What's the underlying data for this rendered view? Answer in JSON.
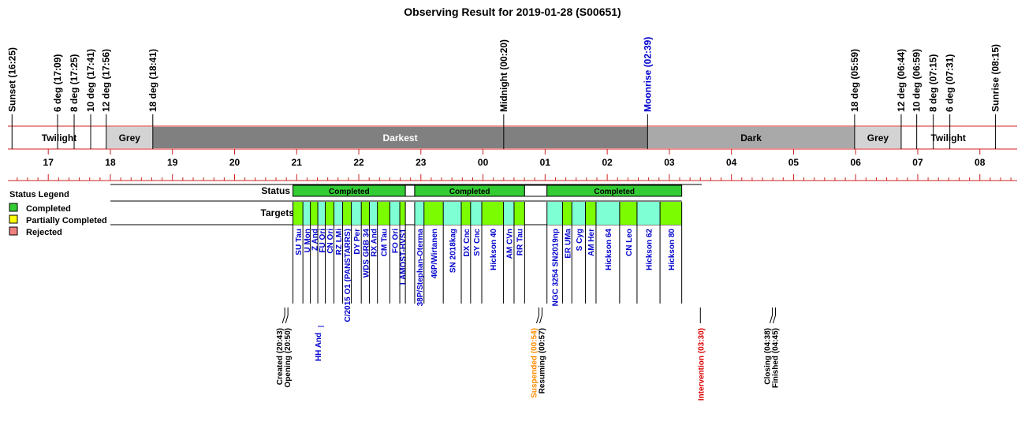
{
  "title": "Observing Result for 2019-01-28 (S00651)",
  "colors": {
    "axis_red": "#d02020",
    "twilight": "#ffffff",
    "grey": "#d3d3d3",
    "darkest": "#808080",
    "dark": "#a9a9a9",
    "completed": "#33cc33",
    "partial": "#ffff00",
    "rejected": "#f08080",
    "target_green": "#7cfc00",
    "target_aqua": "#7fffd4",
    "target_text": "#0000cc",
    "moon_text": "#0000cc",
    "suspend_text": "#ff8c00",
    "intervention_text": "#dd0000"
  },
  "legend": {
    "title": "Status Legend",
    "items": [
      {
        "label": "Completed",
        "color": "#33cc33"
      },
      {
        "label": "Partially Completed",
        "color": "#ffff00"
      },
      {
        "label": "Rejected",
        "color": "#f08080"
      }
    ]
  },
  "chart_data": {
    "type": "timeline",
    "title": "Observing Result for 2019-01-28 (S00651)",
    "x_unit": "hour",
    "xlim": [
      16.35,
      32.6
    ],
    "hour_ticks": [
      {
        "label": "17",
        "t": 17
      },
      {
        "label": "18",
        "t": 18
      },
      {
        "label": "19",
        "t": 19
      },
      {
        "label": "20",
        "t": 20
      },
      {
        "label": "21",
        "t": 21
      },
      {
        "label": "22",
        "t": 22
      },
      {
        "label": "23",
        "t": 23
      },
      {
        "label": "00",
        "t": 24
      },
      {
        "label": "01",
        "t": 25
      },
      {
        "label": "02",
        "t": 26
      },
      {
        "label": "03",
        "t": 27
      },
      {
        "label": "04",
        "t": 28
      },
      {
        "label": "05",
        "t": 29
      },
      {
        "label": "06",
        "t": 30
      },
      {
        "label": "07",
        "t": 31
      },
      {
        "label": "08",
        "t": 32
      }
    ],
    "sky_events": [
      {
        "label": "Sunset (16:25)",
        "t": 16.4167,
        "color": "#000000"
      },
      {
        "label": "6 deg (17:09)",
        "t": 17.15,
        "color": "#000000"
      },
      {
        "label": "8 deg (17:25)",
        "t": 17.4167,
        "color": "#000000"
      },
      {
        "label": "10 deg (17:41)",
        "t": 17.6833,
        "color": "#000000"
      },
      {
        "label": "12 deg (17:56)",
        "t": 17.9333,
        "color": "#000000"
      },
      {
        "label": "18 deg (18:41)",
        "t": 18.6833,
        "color": "#000000"
      },
      {
        "label": "Midnight (00:20)",
        "t": 24.3333,
        "color": "#000000"
      },
      {
        "label": "Moonrise (02:39)",
        "t": 26.65,
        "color": "#0000cc"
      },
      {
        "label": "18 deg (05:59)",
        "t": 29.9833,
        "color": "#000000"
      },
      {
        "label": "12 deg (06:44)",
        "t": 30.7333,
        "color": "#000000"
      },
      {
        "label": "10 deg (06:59)",
        "t": 30.9833,
        "color": "#000000"
      },
      {
        "label": "8 deg (07:15)",
        "t": 31.25,
        "color": "#000000"
      },
      {
        "label": "6 deg (07:31)",
        "t": 31.5167,
        "color": "#000000"
      },
      {
        "label": "Sunrise (08:15)",
        "t": 32.25,
        "color": "#000000"
      }
    ],
    "sky_bands": [
      {
        "label": "Twilight",
        "start": 16.4167,
        "end": 17.9333,
        "fill": "#ffffff",
        "text": "#000000"
      },
      {
        "label": "Grey",
        "start": 17.9333,
        "end": 18.6833,
        "fill": "#d3d3d3",
        "text": "#000000"
      },
      {
        "label": "Darkest",
        "start": 18.6833,
        "end": 26.65,
        "fill": "#808080",
        "text": "#ffffff"
      },
      {
        "label": "Dark",
        "start": 26.65,
        "end": 29.9833,
        "fill": "#a9a9a9",
        "text": "#000000"
      },
      {
        "label": "Grey",
        "start": 29.9833,
        "end": 30.7333,
        "fill": "#d3d3d3",
        "text": "#000000"
      },
      {
        "label": "Twilight",
        "start": 30.7333,
        "end": 32.25,
        "fill": "#ffffff",
        "text": "#000000"
      }
    ],
    "status_label": "Status",
    "targets_label": "Targets",
    "status_blocks": [
      {
        "label": "Completed",
        "start": 20.94,
        "end": 22.75,
        "status": "completed"
      },
      {
        "label": "",
        "start": 22.75,
        "end": 22.9,
        "status": "gap"
      },
      {
        "label": "Completed",
        "start": 22.9,
        "end": 24.67,
        "status": "completed"
      },
      {
        "label": "",
        "start": 24.67,
        "end": 25.03,
        "status": "gap"
      },
      {
        "label": "Completed",
        "start": 25.03,
        "end": 27.2,
        "status": "completed"
      }
    ],
    "targets": [
      {
        "name": "SU Tau",
        "start": 20.94,
        "end": 21.1
      },
      {
        "name": "U Mon",
        "start": 21.1,
        "end": 21.22
      },
      {
        "name": "Z And",
        "start": 21.22,
        "end": 21.34
      },
      {
        "name": "FU Ori",
        "start": 21.34,
        "end": 21.46
      },
      {
        "name": "CN Ori",
        "start": 21.46,
        "end": 21.6
      },
      {
        "name": "RZ LMi",
        "start": 21.6,
        "end": 21.74
      },
      {
        "name": "C/2015 O1 (PANSTARRS)",
        "start": 21.74,
        "end": 21.88
      },
      {
        "name": "DY Per",
        "start": 21.88,
        "end": 22.04
      },
      {
        "name": "WDS GRB 34",
        "start": 22.04,
        "end": 22.17
      },
      {
        "name": "RX And",
        "start": 22.17,
        "end": 22.3
      },
      {
        "name": "CM Tau",
        "start": 22.3,
        "end": 22.5
      },
      {
        "name": "FO Ori",
        "start": 22.5,
        "end": 22.66
      },
      {
        "name": "LAMOST-HVS1",
        "start": 22.66,
        "end": 22.75
      },
      {
        "name": "38P/Stephan-Oterma",
        "start": 22.9,
        "end": 23.05
      },
      {
        "name": "46P/Wirtanen",
        "start": 23.05,
        "end": 23.36
      },
      {
        "name": "SN 2018kag",
        "start": 23.36,
        "end": 23.65
      },
      {
        "name": "DX Cnc",
        "start": 23.65,
        "end": 23.8
      },
      {
        "name": "SY Cnc",
        "start": 23.8,
        "end": 23.98
      },
      {
        "name": "Hickson 40",
        "start": 23.98,
        "end": 24.33
      },
      {
        "name": "AM CVn",
        "start": 24.33,
        "end": 24.5
      },
      {
        "name": "RR Tau",
        "start": 24.5,
        "end": 24.67
      },
      {
        "name": "NGC 3254 SN2019np",
        "start": 25.03,
        "end": 25.28
      },
      {
        "name": "ER UMa",
        "start": 25.28,
        "end": 25.43
      },
      {
        "name": "S Cyg",
        "start": 25.43,
        "end": 25.65
      },
      {
        "name": "AM Her",
        "start": 25.65,
        "end": 25.82
      },
      {
        "name": "Hickson 64",
        "start": 25.82,
        "end": 26.2
      },
      {
        "name": "CN Leo",
        "start": 26.2,
        "end": 26.48
      },
      {
        "name": "Hickson 62",
        "start": 26.48,
        "end": 26.85
      },
      {
        "name": "Hickson 80",
        "start": 26.85,
        "end": 27.2
      }
    ],
    "extra_targets": [
      {
        "name": "HH And",
        "t": 21.34
      }
    ],
    "events": [
      {
        "labels": [
          "Created (20:43)",
          "Opening (20:50)"
        ],
        "t": 20.8333,
        "color": "#000000"
      },
      {
        "labels": [
          "Suspended (00:54)",
          "Resuming (00:57)"
        ],
        "t": 24.925,
        "color": "#ff8c00",
        "second_color": "#000000"
      },
      {
        "labels": [
          "Intervention (03:30)"
        ],
        "t": 27.5,
        "color": "#dd0000"
      },
      {
        "labels": [
          "Closing (04:38)",
          "Finished (04:45)"
        ],
        "t": 28.6833,
        "color": "#000000"
      }
    ]
  }
}
